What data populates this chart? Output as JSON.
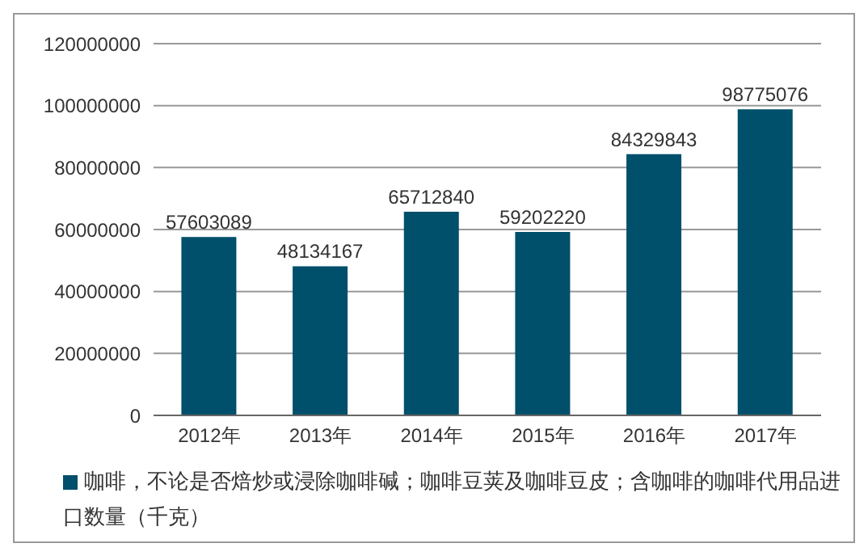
{
  "chart_data": {
    "type": "bar",
    "categories": [
      "2012年",
      "2013年",
      "2014年",
      "2015年",
      "2016年",
      "2017年"
    ],
    "series": [
      {
        "name": "咖啡，不论是否焙炒或浸除咖啡碱；咖啡豆荚及咖啡豆皮；含咖啡的咖啡代用品进口数量（千克）",
        "color": "#004f6b",
        "values": [
          57603089,
          48134167,
          65712840,
          59202220,
          84329843,
          98775076
        ]
      }
    ],
    "ylim": [
      0,
      120000000
    ],
    "yticks": [
      0,
      20000000,
      40000000,
      60000000,
      80000000,
      100000000,
      120000000
    ],
    "grid": "y",
    "legend": "bottom",
    "data_labels": true
  }
}
